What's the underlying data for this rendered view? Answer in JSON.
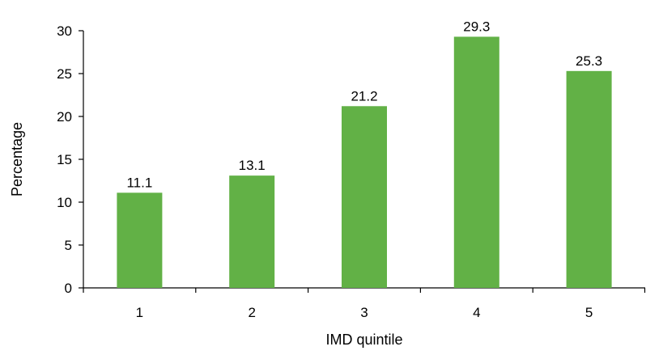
{
  "chart_data": {
    "type": "bar",
    "categories": [
      "1",
      "2",
      "3",
      "4",
      "5"
    ],
    "values": [
      11.1,
      13.1,
      21.2,
      29.3,
      25.3
    ],
    "data_labels": [
      "11.1",
      "13.1",
      "21.2",
      "29.3",
      "25.3"
    ],
    "title": "",
    "xlabel": "IMD quintile",
    "ylabel": "Percentage",
    "ylim": [
      0,
      30
    ],
    "yticks": [
      "0",
      "5",
      "10",
      "15",
      "20",
      "25",
      "30"
    ],
    "grid": false,
    "legend": "none",
    "bar_color": "#62b146",
    "axis_color": "#000000"
  }
}
